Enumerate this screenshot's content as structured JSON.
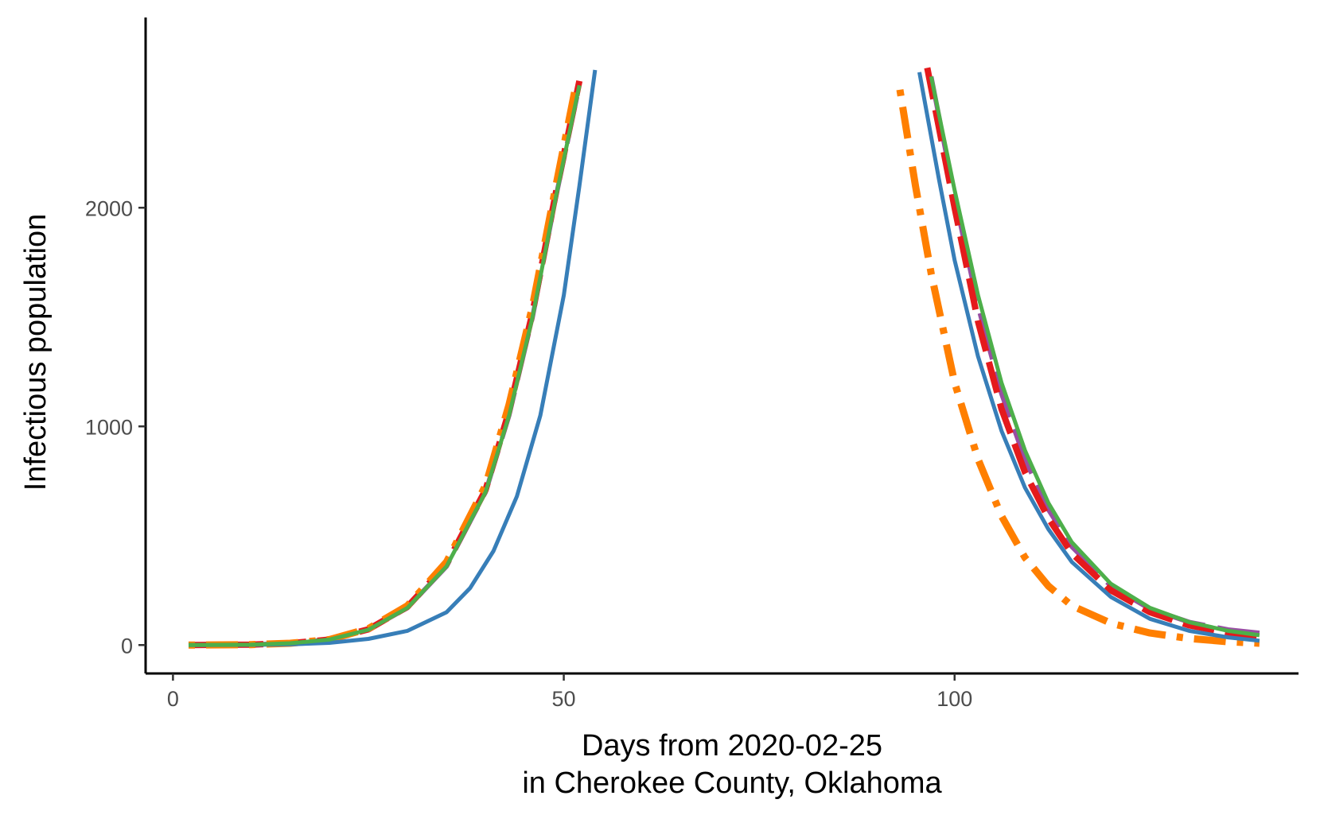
{
  "chart_data": {
    "type": "line",
    "title": "",
    "xlabel_line1": "Days from 2020-02-25",
    "xlabel_line2": "in Cherokee County, Oklahoma",
    "ylabel": "Infectious population",
    "xlim": [
      -3.5,
      144
    ],
    "ylim": [
      -130,
      2870
    ],
    "x_ticks": [
      0,
      50,
      100
    ],
    "y_ticks": [
      0,
      1000,
      2000
    ],
    "grid": false,
    "legend": "none",
    "series": [
      {
        "color": "#984EA3",
        "style": "longdash",
        "points": [
          [
            2,
            0
          ],
          [
            10,
            2
          ],
          [
            15,
            8
          ],
          [
            20,
            25
          ],
          [
            25,
            70
          ],
          [
            30,
            170
          ],
          [
            35,
            360
          ],
          [
            40,
            700
          ],
          [
            43,
            1050
          ],
          [
            46,
            1500
          ],
          [
            49,
            2050
          ],
          [
            52,
            2560
          ],
          null,
          [
            97,
            2600
          ],
          [
            100,
            2050
          ],
          [
            103,
            1550
          ],
          [
            106,
            1150
          ],
          [
            109,
            850
          ],
          [
            112,
            620
          ],
          [
            115,
            450
          ],
          [
            120,
            270
          ],
          [
            125,
            165
          ],
          [
            130,
            105
          ],
          [
            135,
            70
          ],
          [
            139,
            55
          ]
        ]
      },
      {
        "color": "#E41A1C",
        "style": "dashed",
        "points": [
          [
            2,
            0
          ],
          [
            10,
            2
          ],
          [
            15,
            8
          ],
          [
            20,
            25
          ],
          [
            25,
            72
          ],
          [
            30,
            175
          ],
          [
            35,
            370
          ],
          [
            40,
            710
          ],
          [
            43,
            1070
          ],
          [
            46,
            1520
          ],
          [
            49,
            2070
          ],
          [
            52,
            2580
          ],
          null,
          [
            96.5,
            2640
          ],
          [
            100,
            2000
          ],
          [
            103,
            1480
          ],
          [
            106,
            1080
          ],
          [
            109,
            790
          ],
          [
            112,
            580
          ],
          [
            115,
            420
          ],
          [
            120,
            250
          ],
          [
            125,
            150
          ],
          [
            130,
            90
          ],
          [
            135,
            55
          ],
          [
            139,
            35
          ]
        ]
      },
      {
        "color": "#FF7F00",
        "style": "dotdash",
        "points": [
          [
            2,
            0
          ],
          [
            10,
            2
          ],
          [
            15,
            8
          ],
          [
            20,
            25
          ],
          [
            25,
            75
          ],
          [
            30,
            180
          ],
          [
            35,
            380
          ],
          [
            40,
            730
          ],
          [
            43,
            1100
          ],
          [
            46,
            1550
          ],
          [
            49,
            2100
          ],
          [
            51.5,
            2550
          ],
          null,
          [
            93,
            2540
          ],
          [
            95,
            2100
          ],
          [
            97,
            1700
          ],
          [
            100,
            1200
          ],
          [
            103,
            850
          ],
          [
            106,
            590
          ],
          [
            109,
            400
          ],
          [
            112,
            270
          ],
          [
            115,
            180
          ],
          [
            120,
            100
          ],
          [
            125,
            55
          ],
          [
            130,
            30
          ],
          [
            135,
            15
          ],
          [
            139,
            8
          ]
        ]
      },
      {
        "color": "#377EB8",
        "style": "solid",
        "points": [
          [
            2,
            0
          ],
          [
            10,
            1
          ],
          [
            15,
            3
          ],
          [
            20,
            10
          ],
          [
            25,
            28
          ],
          [
            30,
            65
          ],
          [
            35,
            150
          ],
          [
            38,
            260
          ],
          [
            41,
            430
          ],
          [
            44,
            680
          ],
          [
            47,
            1050
          ],
          [
            50,
            1600
          ],
          [
            52,
            2100
          ],
          [
            54,
            2630
          ],
          null,
          [
            95.5,
            2620
          ],
          [
            98,
            2130
          ],
          [
            100,
            1760
          ],
          [
            103,
            1320
          ],
          [
            106,
            980
          ],
          [
            109,
            720
          ],
          [
            112,
            530
          ],
          [
            115,
            380
          ],
          [
            120,
            220
          ],
          [
            125,
            120
          ],
          [
            130,
            65
          ],
          [
            135,
            35
          ],
          [
            139,
            20
          ]
        ]
      },
      {
        "color": "#4DAF4A",
        "style": "solid",
        "points": [
          [
            2,
            0
          ],
          [
            10,
            2
          ],
          [
            15,
            8
          ],
          [
            20,
            25
          ],
          [
            25,
            70
          ],
          [
            30,
            170
          ],
          [
            35,
            360
          ],
          [
            40,
            700
          ],
          [
            43,
            1050
          ],
          [
            46,
            1500
          ],
          [
            49,
            2050
          ],
          [
            52,
            2560
          ],
          null,
          [
            97,
            2600
          ],
          [
            100,
            2080
          ],
          [
            103,
            1600
          ],
          [
            106,
            1200
          ],
          [
            109,
            890
          ],
          [
            112,
            650
          ],
          [
            115,
            470
          ],
          [
            120,
            280
          ],
          [
            125,
            170
          ],
          [
            130,
            105
          ],
          [
            135,
            65
          ],
          [
            139,
            45
          ]
        ]
      }
    ]
  }
}
